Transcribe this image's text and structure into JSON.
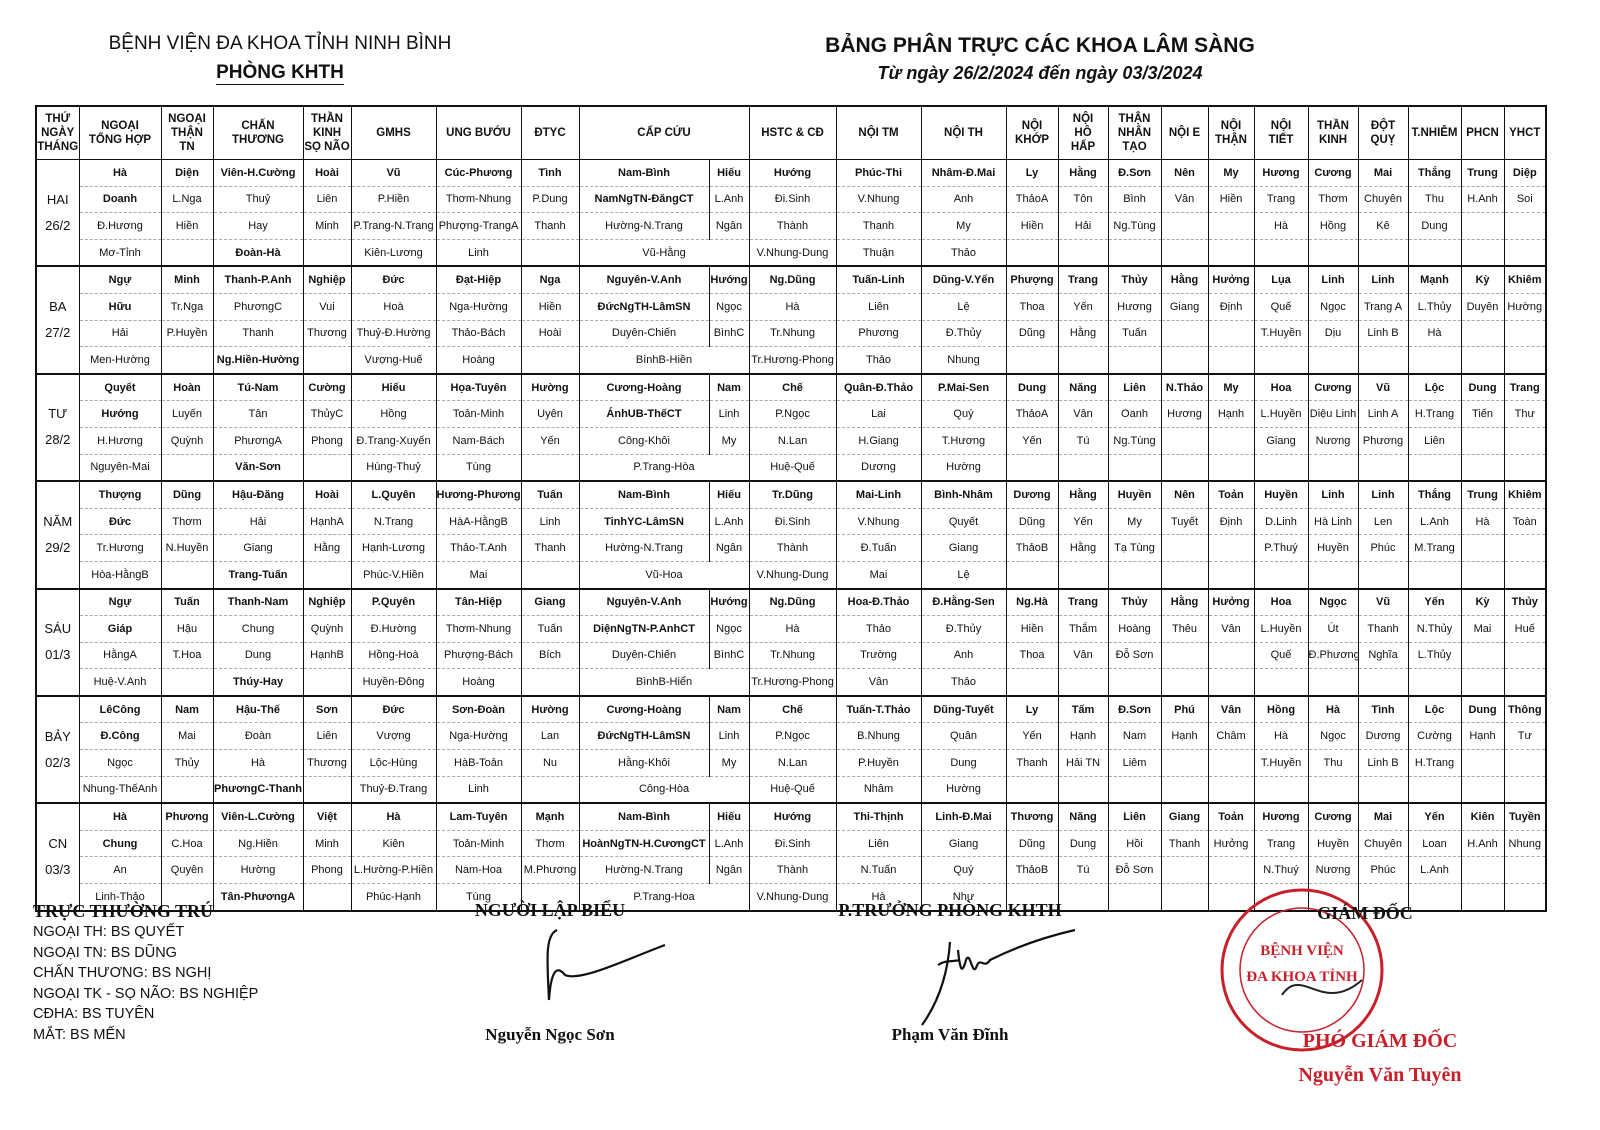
{
  "header": {
    "hospital": "BỆNH VIỆN ĐA KHOA TỈNH NINH BÌNH",
    "department": "PHÒNG KHTH",
    "title": "BẢNG PHÂN TRỰC CÁC KHOA LÂM SÀNG",
    "subtitle": "Từ ngày 26/2/2024 đến ngày 03/3/2024"
  },
  "columns": [
    "THỨ\nNGÀY\nTHÁNG",
    "NGOẠI\nTỔNG HỢP",
    "NGOẠI\nTHẬN\nTN",
    "CHẤN\nTHƯƠNG",
    "THẦN\nKINH\nSỌ NÃO",
    "GMHS",
    "UNG BƯỚU",
    "ĐTYC",
    "CẤP CỨU",
    "HSTC & CĐ",
    "NỘI TM",
    "NỘI TH",
    "NỘI\nKHỚP",
    "NỘI\nHÔ\nHẤP",
    "THẬN\nNHÂN\nTẠO",
    "NỘI E",
    "NỘI\nTHẬN",
    "NỘI\nTIẾT",
    "THẦN\nKINH",
    "ĐỘT\nQUỴ",
    "T.NHIỄM",
    "PHCN",
    "YHCT"
  ],
  "days": [
    {
      "day": "HAI",
      "date": "26/2",
      "cells": [
        [
          "Hà",
          "Doanh",
          "Đ.Hương",
          "Mơ-Tỉnh"
        ],
        [
          "Diện",
          "L.Nga",
          "Hiền"
        ],
        [
          "Viên-H.Cường",
          "Thuỷ",
          "Hay",
          "Đoàn-Hà"
        ],
        [
          "Hoài",
          "Liên",
          "Minh"
        ],
        [
          "Vũ",
          "P.Hiền",
          "P.Trang-N.Trang",
          "Kiên-Lương"
        ],
        [
          "Cúc-Phương",
          "Thơm-Nhung",
          "Phượng-TrangA",
          "Linh"
        ],
        [
          "Tình",
          "P.Dung",
          "Thanh"
        ],
        [
          "Nam-Bình",
          "NamNgTN-ĐăngCT",
          "Hường-N.Trang",
          "Vũ-Hằng"
        ],
        [
          "Hiếu",
          "L.Anh",
          "Ngân"
        ],
        [
          "Hướng",
          "Đi.Sinh",
          "Thành",
          "V.Nhung-Dung"
        ],
        [
          "Phúc-Thi",
          "V.Nhung",
          "Thanh",
          "Thuận"
        ],
        [
          "Nhâm-Đ.Mai",
          "Anh",
          "My",
          "Thảo"
        ],
        [
          "Ly",
          "ThảoA",
          "Hiền"
        ],
        [
          "Hằng",
          "Tôn",
          "Hải"
        ],
        [
          "Đ.Sơn",
          "Bình",
          "Ng.Tùng"
        ],
        [
          "Nên",
          "Vân"
        ],
        [
          "My",
          "Hiền"
        ],
        [
          "Hương",
          "Trang",
          "Hà"
        ],
        [
          "Cương",
          "Thơm",
          "Hồng"
        ],
        [
          "Mai",
          "Chuyên",
          "Kê"
        ],
        [
          "Thắng",
          "Thu",
          "Dung"
        ],
        [
          "Trung",
          "H.Anh"
        ],
        [
          "Diệp",
          "Soi"
        ]
      ]
    },
    {
      "day": "BA",
      "date": "27/2",
      "cells": [
        [
          "Ngự",
          "Hữu",
          "Hải",
          "Men-Hường"
        ],
        [
          "Minh",
          "Tr.Nga",
          "P.Huyền"
        ],
        [
          "Thanh-P.Anh",
          "PhươngC",
          "Thanh",
          "Ng.Hiền-Hường"
        ],
        [
          "Nghiệp",
          "Vui",
          "Thương"
        ],
        [
          "Đức",
          "Hoà",
          "Thuỷ-Đ.Hường",
          "Vượng-Huế"
        ],
        [
          "Đạt-Hiệp",
          "Nga-Hường",
          "Thảo-Bách",
          "Hoàng"
        ],
        [
          "Nga",
          "Hiền",
          "Hoài"
        ],
        [
          "Nguyên-V.Anh",
          "ĐứcNgTH-LâmSN",
          "Duyên-Chiến",
          "BìnhB-Hiền"
        ],
        [
          "Hướng",
          "Ngọc",
          "BìnhC"
        ],
        [
          "Ng.Dũng",
          "Hà",
          "Tr.Nhung",
          "Tr.Hương-Phong"
        ],
        [
          "Tuấn-Linh",
          "Liên",
          "Phương",
          "Thảo"
        ],
        [
          "Dũng-V.Yến",
          "Lệ",
          "Đ.Thủy",
          "Nhung"
        ],
        [
          "Phượng",
          "Thoa",
          "Dũng"
        ],
        [
          "Trang",
          "Yến",
          "Hằng"
        ],
        [
          "Thủy",
          "Hương",
          "Tuấn"
        ],
        [
          "Hằng",
          "Giang"
        ],
        [
          "Hưởng",
          "Định"
        ],
        [
          "Lụa",
          "Quế",
          "T.Huyền"
        ],
        [
          "Linh",
          "Ngọc",
          "Dịu"
        ],
        [
          "Linh",
          "Trang A",
          "Linh B"
        ],
        [
          "Mạnh",
          "L.Thủy",
          "Hà"
        ],
        [
          "Kỳ",
          "Duyên"
        ],
        [
          "Khiêm",
          "Hường"
        ]
      ]
    },
    {
      "day": "TƯ",
      "date": "28/2",
      "cells": [
        [
          "Quyết",
          "Hướng",
          "H.Hương",
          "Nguyên-Mai"
        ],
        [
          "Hoàn",
          "Luyến",
          "Quỳnh"
        ],
        [
          "Tú-Nam",
          "Tân",
          "PhươngA",
          "Văn-Sơn"
        ],
        [
          "Cường",
          "ThủyC",
          "Phong"
        ],
        [
          "Hiếu",
          "Hồng",
          "Đ.Trang-Xuyến",
          "Hùng-Thuỷ"
        ],
        [
          "Họa-Tuyên",
          "Toản-Minh",
          "Nam-Bách",
          "Tùng"
        ],
        [
          "Hường",
          "Uyên",
          "Yến"
        ],
        [
          "Cương-Hoàng",
          "ÁnhUB-ThếCT",
          "Công-Khôi",
          "P.Trang-Hòa"
        ],
        [
          "Nam",
          "Linh",
          "My"
        ],
        [
          "Chế",
          "P.Ngọc",
          "N.Lan",
          "Huệ-Quế"
        ],
        [
          "Quân-Đ.Thảo",
          "Lai",
          "H.Giang",
          "Dương"
        ],
        [
          "P.Mai-Sen",
          "Quý",
          "T.Hương",
          "Hường"
        ],
        [
          "Dung",
          "ThảoA",
          "Yến"
        ],
        [
          "Năng",
          "Vân",
          "Tú"
        ],
        [
          "Liên",
          "Oanh",
          "Ng.Tùng"
        ],
        [
          "N.Thảo",
          "Hương"
        ],
        [
          "My",
          "Hạnh"
        ],
        [
          "Hoa",
          "L.Huyền",
          "Giang"
        ],
        [
          "Cương",
          "Diệu Linh",
          "Nương"
        ],
        [
          "Vũ",
          "Linh A",
          "Phương"
        ],
        [
          "Lộc",
          "H.Trang",
          "Liên"
        ],
        [
          "Dung",
          "Tiến"
        ],
        [
          "Trang",
          "Thư"
        ]
      ]
    },
    {
      "day": "NĂM",
      "date": "29/2",
      "cells": [
        [
          "Thượng",
          "Đức",
          "Tr.Hương",
          "Hòa-HằngB"
        ],
        [
          "Dũng",
          "Thơm",
          "N.Huyền"
        ],
        [
          "Hậu-Đăng",
          "Hải",
          "Giang",
          "Trang-Tuấn"
        ],
        [
          "Hoài",
          "HạnhA",
          "Hằng"
        ],
        [
          "L.Quyên",
          "N.Trang",
          "Hạnh-Lương",
          "Phúc-V.Hiền"
        ],
        [
          "Hương-Phương",
          "HàA-HằngB",
          "Thảo-T.Anh",
          "Mai"
        ],
        [
          "Tuấn",
          "Linh",
          "Thanh"
        ],
        [
          "Nam-Bình",
          "TinhYC-LâmSN",
          "Hường-N.Trang",
          "Vũ-Hoa"
        ],
        [
          "Hiếu",
          "L.Anh",
          "Ngân"
        ],
        [
          "Tr.Dũng",
          "Đi.Sinh",
          "Thành",
          "V.Nhung-Dung"
        ],
        [
          "Mai-Linh",
          "V.Nhung",
          "Đ.Tuấn",
          "Mai"
        ],
        [
          "Bình-Nhâm",
          "Quyết",
          "Giang",
          "Lệ"
        ],
        [
          "Dương",
          "Dũng",
          "ThảoB"
        ],
        [
          "Hằng",
          "Yến",
          "Hằng"
        ],
        [
          "Huyền",
          "My",
          "Tạ Tùng"
        ],
        [
          "Nên",
          "Tuyết"
        ],
        [
          "Toản",
          "Định"
        ],
        [
          "Huyền",
          "D.Linh",
          "P.Thuý"
        ],
        [
          "Linh",
          "Hà Linh",
          "Huyền"
        ],
        [
          "Linh",
          "Len",
          "Phúc"
        ],
        [
          "Thắng",
          "L.Anh",
          "M.Trang"
        ],
        [
          "Trung",
          "Hà"
        ],
        [
          "Khiêm",
          "Toàn"
        ]
      ]
    },
    {
      "day": "SÁU",
      "date": "01/3",
      "cells": [
        [
          "Ngự",
          "Giáp",
          "HằngA",
          "Huệ-V.Anh"
        ],
        [
          "Tuấn",
          "Hậu",
          "T.Hoa"
        ],
        [
          "Thanh-Nam",
          "Chung",
          "Dung",
          "Thúy-Hay"
        ],
        [
          "Nghiệp",
          "Quỳnh",
          "HạnhB"
        ],
        [
          "P.Quyên",
          "Đ.Hường",
          "Hồng-Hoà",
          "Huyền-Đông"
        ],
        [
          "Tân-Hiệp",
          "Thơm-Nhung",
          "Phượng-Bách",
          "Hoàng"
        ],
        [
          "Giang",
          "Tuấn",
          "Bích"
        ],
        [
          "Nguyên-V.Anh",
          "DiệnNgTN-P.AnhCT",
          "Duyên-Chiến",
          "BìnhB-Hiển"
        ],
        [
          "Hướng",
          "Ngọc",
          "BìnhC"
        ],
        [
          "Ng.Dũng",
          "Hà",
          "Tr.Nhung",
          "Tr.Hương-Phong"
        ],
        [
          "Hoa-Đ.Thảo",
          "Thảo",
          "Trường",
          "Vân"
        ],
        [
          "Đ.Hằng-Sen",
          "Đ.Thủy",
          "Anh",
          "Thảo"
        ],
        [
          "Ng.Hà",
          "Hiền",
          "Thoa"
        ],
        [
          "Trang",
          "Thắm",
          "Vân"
        ],
        [
          "Thủy",
          "Hoàng",
          "Đỗ Sơn"
        ],
        [
          "Hằng",
          "Thêu"
        ],
        [
          "Hưởng",
          "Vân"
        ],
        [
          "Hoa",
          "L.Huyền",
          "Quế"
        ],
        [
          "Ngọc",
          "Út",
          "Đ.Phương"
        ],
        [
          "Vũ",
          "Thanh",
          "Nghĩa"
        ],
        [
          "Yến",
          "N.Thủy",
          "L.Thủy"
        ],
        [
          "Kỳ",
          "Mai"
        ],
        [
          "Thủy",
          "Huế"
        ]
      ]
    },
    {
      "day": "BẢY",
      "date": "02/3",
      "cells": [
        [
          "LêCông",
          "Đ.Công",
          "Ngọc",
          "Nhung-ThếAnh"
        ],
        [
          "Nam",
          "Mai",
          "Thủy"
        ],
        [
          "Hậu-Thế",
          "Đoàn",
          "Hà",
          "PhươngC-Thanh"
        ],
        [
          "Sơn",
          "Liên",
          "Thương"
        ],
        [
          "Đức",
          "Vượng",
          "Lộc-Hùng",
          "Thuỷ-Đ.Trang"
        ],
        [
          "Sơn-Đoàn",
          "Nga-Hường",
          "HàB-Toản",
          "Linh"
        ],
        [
          "Hường",
          "Lan",
          "Nu"
        ],
        [
          "Cương-Hoàng",
          "ĐứcNgTH-LâmSN",
          "Hằng-Khôi",
          "Công-Hòa"
        ],
        [
          "Nam",
          "Linh",
          "My"
        ],
        [
          "Chế",
          "P.Ngọc",
          "N.Lan",
          "Huệ-Quế"
        ],
        [
          "Tuấn-T.Thảo",
          "B.Nhung",
          "P.Huyền",
          "Nhâm"
        ],
        [
          "Dũng-Tuyết",
          "Quân",
          "Dung",
          "Hường"
        ],
        [
          "Ly",
          "Yến",
          "Thanh"
        ],
        [
          "Tấm",
          "Hạnh",
          "Hải TN"
        ],
        [
          "Đ.Sơn",
          "Nam",
          "Liêm"
        ],
        [
          "Phú",
          "Hạnh"
        ],
        [
          "Vân",
          "Châm"
        ],
        [
          "Hồng",
          "Hà",
          "T.Huyền"
        ],
        [
          "Hà",
          "Ngọc",
          "Thu"
        ],
        [
          "Tình",
          "Dương",
          "Linh B"
        ],
        [
          "Lộc",
          "Cường",
          "H.Trang"
        ],
        [
          "Dung",
          "Hạnh"
        ],
        [
          "Thông",
          "Tư"
        ]
      ]
    },
    {
      "day": "CN",
      "date": "03/3",
      "cells": [
        [
          "Hà",
          "Chung",
          "An",
          "Linh-Thảo"
        ],
        [
          "Phương",
          "C.Hoa",
          "Quyên"
        ],
        [
          "Viên-L.Cường",
          "Ng.Hiền",
          "Hường",
          "Tân-PhươngA"
        ],
        [
          "Việt",
          "Minh",
          "Phong"
        ],
        [
          "Hà",
          "Kiên",
          "L.Hường-P.Hiền",
          "Phúc-Hạnh"
        ],
        [
          "Lam-Tuyên",
          "Toản-Minh",
          "Nam-Hoa",
          "Tùng"
        ],
        [
          "Mạnh",
          "Thơm",
          "M.Phương"
        ],
        [
          "Nam-Bình",
          "HoànNgTN-H.CươngCT",
          "Hường-N.Trang",
          "P.Trang-Hoa"
        ],
        [
          "Hiếu",
          "L.Anh",
          "Ngân"
        ],
        [
          "Hướng",
          "Đi.Sinh",
          "Thành",
          "V.Nhung-Dung"
        ],
        [
          "Thi-Thịnh",
          "Liên",
          "N.Tuấn",
          "Hà"
        ],
        [
          "Linh-Đ.Mai",
          "Giang",
          "Quý",
          "Như"
        ],
        [
          "Thương",
          "Dũng",
          "ThảoB"
        ],
        [
          "Năng",
          "Dung",
          "Tú"
        ],
        [
          "Liên",
          "Hồi",
          "Đỗ Sơn"
        ],
        [
          "Giang",
          "Thanh"
        ],
        [
          "Toản",
          "Hưởng"
        ],
        [
          "Hương",
          "Trang",
          "N.Thuý"
        ],
        [
          "Cương",
          "Huyền",
          "Nương"
        ],
        [
          "Mai",
          "Chuyên",
          "Phúc"
        ],
        [
          "Yến",
          "Loan",
          "L.Anh"
        ],
        [
          "Kiên",
          "H.Anh"
        ],
        [
          "Tuyền",
          "Nhung"
        ]
      ]
    }
  ],
  "resident_duty": {
    "title": "TRỰC THƯỜNG TRÚ",
    "lines": [
      "NGOẠI TH: BS QUYẾT",
      "NGOẠI TN: BS DŨNG",
      "CHẤN THƯƠNG: BS NGHỊ",
      "NGOẠI TK - SỌ NÃO: BS NGHIỆP",
      "CĐHA: BS TUYÊN",
      "MẮT: BS MẾN"
    ]
  },
  "signatures": {
    "preparer_title": "NGƯỜI LẬP BIỂU",
    "preparer_name": "Nguyễn Ngọc Sơn",
    "deputy_head_title": "P.TRƯỞNG PHÒNG KHTH",
    "deputy_head_name": "Phạm Văn Đĩnh",
    "director_title": "GIÁM ĐỐC",
    "vice_director_title": "PHÓ GIÁM ĐỐC",
    "vice_director_name": "Nguyễn Văn Tuyên",
    "stamp_text": "BỆNH VIỆN ĐA KHOA TỈNH",
    "stamp_color": "#c8202a"
  }
}
